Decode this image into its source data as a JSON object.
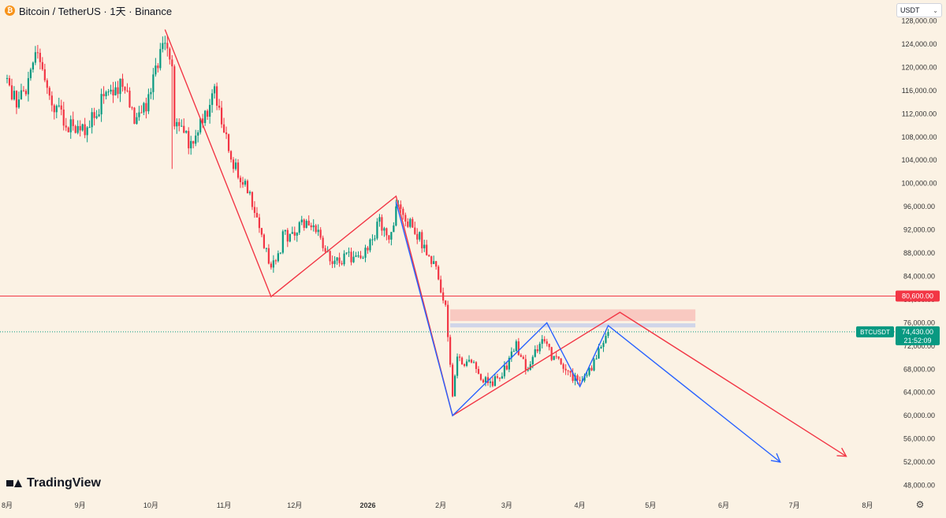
{
  "header": {
    "symbol_title": "Bitcoin / TetherUS · 1天 · Binance"
  },
  "currency_selector": {
    "value": "USDT"
  },
  "branding": {
    "logo_text": "TradingView"
  },
  "icons": {
    "symbol": "bitcoin-icon",
    "settings": "gear-icon",
    "dropdown": "chevron-down-icon"
  },
  "colors": {
    "up": "#089981",
    "down": "#f23645",
    "background": "#fbf2e4",
    "resistance": "#f23645",
    "pattern_blue": "#2962ff"
  },
  "price_labels": {
    "level": "80,600.00",
    "current_symbol": "BTCUSDT",
    "current_price": "74,430.00",
    "countdown": "21:52:09"
  },
  "chart_data": {
    "type": "candlestick",
    "yscale": "linear",
    "ylim": [
      45200,
      128600
    ],
    "y_ticks": [
      "48,000.00",
      "52,000.00",
      "56,000.00",
      "60,000.00",
      "64,000.00",
      "68,000.00",
      "72,000.00",
      "76,000.00",
      "80,000.00",
      "84,000.00",
      "88,000.00",
      "92,000.00",
      "96,000.00",
      "100,000.00",
      "104,000.00",
      "108,000.00",
      "112,000.00",
      "116,000.00",
      "120,000.00",
      "124,000.00",
      "128,000.00"
    ],
    "x_ticks": [
      "8月",
      "9月",
      "10月",
      "11月",
      "12月",
      "2026",
      "2月",
      "3月",
      "4月",
      "5月",
      "6月",
      "7月",
      "8月"
    ],
    "x_tick_dates": [
      "2025-08-01",
      "2025-09-01",
      "2025-10-01",
      "2025-11-01",
      "2025-12-01",
      "2026-01-01",
      "2026-02-01",
      "2026-03-01",
      "2026-04-01",
      "2026-05-01",
      "2026-06-01",
      "2026-07-01",
      "2026-08-01"
    ],
    "price_path": [
      [
        "2025-08-01",
        118000
      ],
      [
        "2025-08-05",
        113500
      ],
      [
        "2025-08-09",
        117000
      ],
      [
        "2025-08-14",
        123500
      ],
      [
        "2025-08-19",
        114500
      ],
      [
        "2025-08-25",
        111000
      ],
      [
        "2025-08-31",
        108500
      ],
      [
        "2025-09-05",
        110500
      ],
      [
        "2025-09-12",
        115500
      ],
      [
        "2025-09-18",
        117300
      ],
      [
        "2025-09-24",
        111500
      ],
      [
        "2025-09-30",
        114000
      ],
      [
        "2025-10-06",
        125000
      ],
      [
        "2025-10-10",
        121500
      ],
      [
        "2025-10-11",
        111000
      ],
      [
        "2025-10-17",
        107000
      ],
      [
        "2025-10-24",
        111500
      ],
      [
        "2025-10-28",
        115500
      ],
      [
        "2025-11-04",
        104000
      ],
      [
        "2025-11-14",
        96000
      ],
      [
        "2025-11-21",
        84500
      ],
      [
        "2025-11-26",
        90500
      ],
      [
        "2025-12-03",
        93000
      ],
      [
        "2025-12-10",
        92300
      ],
      [
        "2025-12-17",
        86500
      ],
      [
        "2025-12-25",
        87500
      ],
      [
        "2025-12-31",
        88000
      ],
      [
        "2026-01-06",
        93500
      ],
      [
        "2026-01-10",
        90700
      ],
      [
        "2026-01-14",
        96500
      ],
      [
        "2026-01-20",
        92500
      ],
      [
        "2026-01-25",
        89000
      ],
      [
        "2026-01-31",
        84000
      ],
      [
        "2026-02-03",
        78500
      ],
      [
        "2026-02-06",
        62500
      ],
      [
        "2026-02-08",
        70000
      ],
      [
        "2026-02-15",
        68500
      ],
      [
        "2026-02-22",
        65000
      ],
      [
        "2026-02-28",
        68000
      ],
      [
        "2026-03-05",
        72000
      ],
      [
        "2026-03-10",
        67500
      ],
      [
        "2026-03-16",
        74000
      ],
      [
        "2026-03-20",
        70000
      ],
      [
        "2026-03-26",
        68000
      ],
      [
        "2026-03-30",
        66000
      ],
      [
        "2026-04-04",
        67000
      ],
      [
        "2026-04-09",
        71000
      ],
      [
        "2026-04-13",
        74430
      ]
    ],
    "annotations": {
      "horizontal_line": 80600,
      "resistance_zone": [
        76300,
        78300
      ],
      "resistance_zone_band2": [
        75200,
        75900
      ],
      "red_pattern": [
        [
          "2025-10-07",
          126500
        ],
        [
          "2025-11-21",
          80500
        ],
        [
          "2026-01-13",
          97800
        ],
        [
          "2026-02-06",
          60000
        ],
        [
          "2026-04-18",
          77800
        ],
        [
          "2026-07-23",
          53000
        ]
      ],
      "blue_pattern": [
        [
          "2026-01-13",
          96800
        ],
        [
          "2026-02-06",
          60000
        ],
        [
          "2026-03-18",
          76000
        ],
        [
          "2026-04-01",
          65000
        ],
        [
          "2026-04-13",
          75500
        ],
        [
          "2026-06-25",
          52000
        ]
      ]
    }
  }
}
